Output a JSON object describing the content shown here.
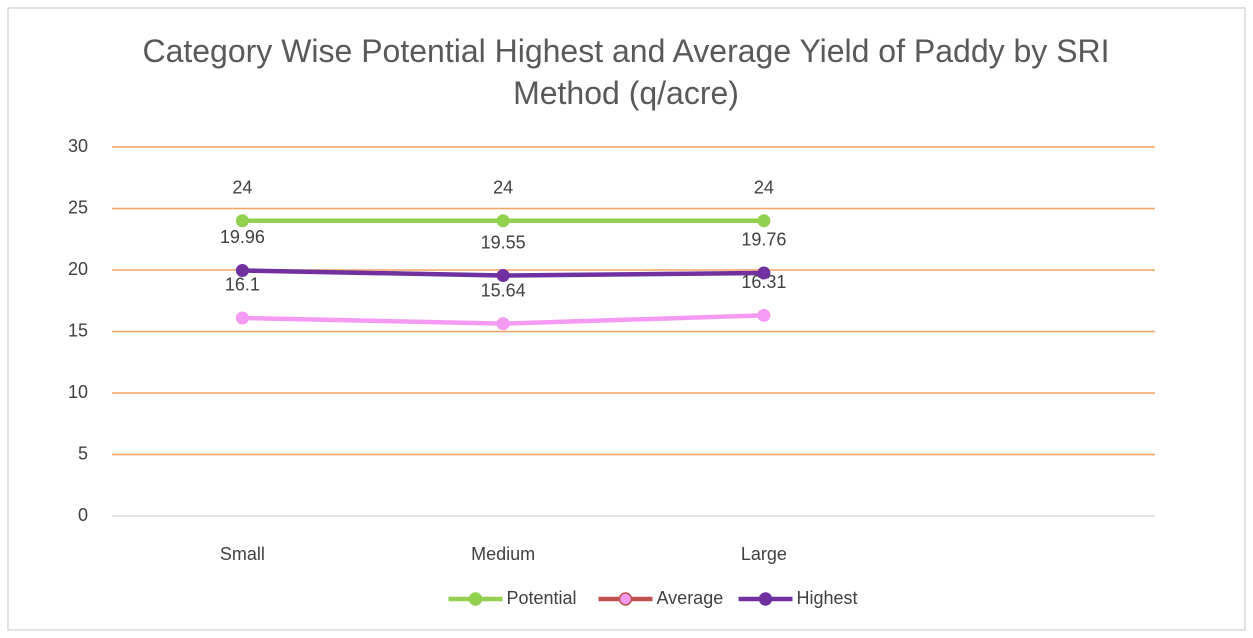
{
  "chart_data": {
    "type": "line",
    "title": "Category Wise Potential Highest and Average Yield of Paddy by SRI Method (q/acre)",
    "categories": [
      "Small",
      "Medium",
      "Large",
      null
    ],
    "series": [
      {
        "name": "Potential",
        "color": "#92d050",
        "values": [
          24,
          24,
          24,
          null
        ]
      },
      {
        "name": "Average",
        "color": "#f59af2",
        "legend_line_color": "#c0504d",
        "values": [
          16.1,
          15.64,
          16.31,
          null
        ]
      },
      {
        "name": "Highest",
        "color": "#7030a0",
        "values": [
          19.96,
          19.55,
          19.76,
          null
        ]
      }
    ],
    "ylim": [
      0,
      30
    ],
    "yticks": [
      0,
      5,
      10,
      15,
      20,
      25,
      30
    ],
    "grid": true,
    "grid_color": "#f4a460",
    "legend": "bottom"
  }
}
